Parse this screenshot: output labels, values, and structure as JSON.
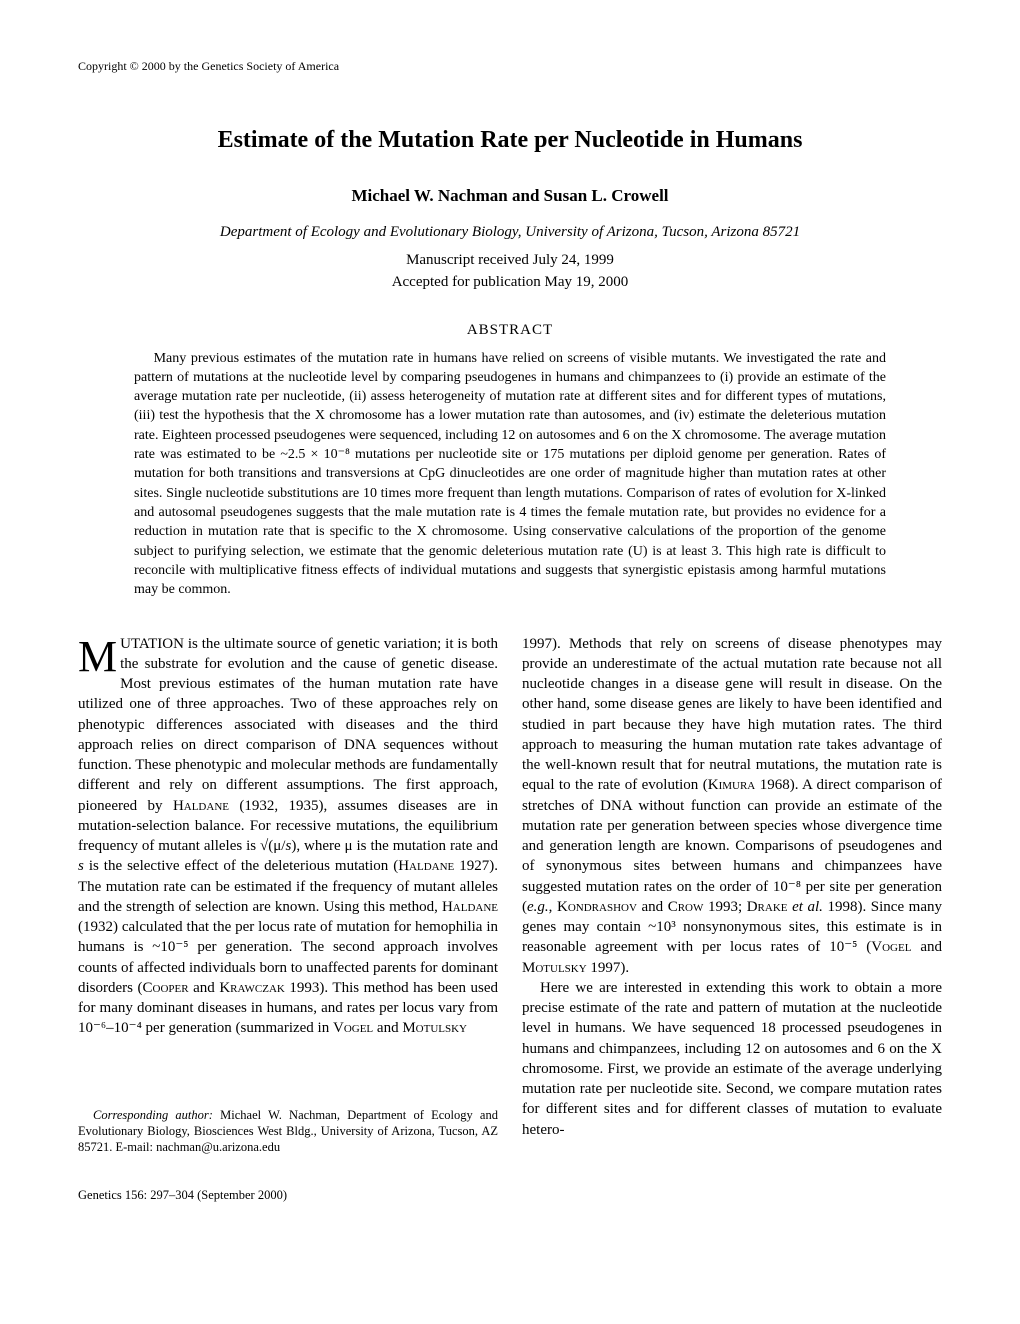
{
  "header": {
    "copyright": "Copyright © 2000 by the Genetics Society of America"
  },
  "title": "Estimate of the Mutation Rate per Nucleotide in Humans",
  "authors": "Michael W. Nachman and Susan L. Crowell",
  "affiliation": "Department of Ecology and Evolutionary Biology, University of Arizona, Tucson, Arizona 85721",
  "dates": {
    "received": "Manuscript received July 24, 1999",
    "accepted": "Accepted for publication May 19, 2000"
  },
  "abstract": {
    "heading": "ABSTRACT",
    "body": "Many previous estimates of the mutation rate in humans have relied on screens of visible mutants. We investigated the rate and pattern of mutations at the nucleotide level by comparing pseudogenes in humans and chimpanzees to (i) provide an estimate of the average mutation rate per nucleotide, (ii) assess heterogeneity of mutation rate at different sites and for different types of mutations, (iii) test the hypothesis that the X chromosome has a lower mutation rate than autosomes, and (iv) estimate the deleterious mutation rate. Eighteen processed pseudogenes were sequenced, including 12 on autosomes and 6 on the X chromosome. The average mutation rate was estimated to be ~2.5 × 10⁻⁸ mutations per nucleotide site or 175 mutations per diploid genome per generation. Rates of mutation for both transitions and transversions at CpG dinucleotides are one order of magnitude higher than mutation rates at other sites. Single nucleotide substitutions are 10 times more frequent than length mutations. Comparison of rates of evolution for X-linked and autosomal pseudogenes suggests that the male mutation rate is 4 times the female mutation rate, but provides no evidence for a reduction in mutation rate that is specific to the X chromosome. Using conservative calculations of the proportion of the genome subject to purifying selection, we estimate that the genomic deleterious mutation rate (U) is at least 3. This high rate is difficult to reconcile with multiplicative fitness effects of individual mutations and suggests that synergistic epistasis among harmful mutations may be common."
  },
  "body": {
    "col1": {
      "p1_html": "<span class=\"dropcap\">M</span>UTATION is the ultimate source of genetic variation; it is both the substrate for evolution and the cause of genetic disease. Most previous estimates of the human mutation rate have utilized one of three approaches. Two of these approaches rely on phenotypic differences associated with diseases and the third approach relies on direct comparison of DNA sequences without function. These phenotypic and molecular methods are fundamentally different and rely on different assumptions. The first approach, pioneered by <span class=\"sc\">Haldane</span> (1932, 1935), assumes diseases are in mutation-selection balance. For recessive mutations, the equilibrium frequency of mutant alleles is √(μ/<i>s</i>), where μ is the mutation rate and <i>s</i> is the selective effect of the deleterious mutation (<span class=\"sc\">Haldane</span> 1927). The mutation rate can be estimated if the frequency of mutant alleles and the strength of selection are known. Using this method, <span class=\"sc\">Haldane</span> (1932) calculated that the per locus rate of mutation for hemophilia in humans is ~10⁻⁵ per generation. The second approach involves counts of affected individuals born to unaffected parents for dominant disorders (<span class=\"sc\">Cooper</span> and <span class=\"sc\">Krawczak</span> 1993). This method has been used for many dominant diseases in humans, and rates per locus vary from 10⁻⁶–10⁻⁴ per generation (summarized in <span class=\"sc\">Vogel</span> and <span class=\"sc\">Motulsky</span>"
    },
    "col2": {
      "p1_html": "1997). Methods that rely on screens of disease phenotypes may provide an underestimate of the actual mutation rate because not all nucleotide changes in a disease gene will result in disease. On the other hand, some disease genes are likely to have been identified and studied in part because they have high mutation rates. The third approach to measuring the human mutation rate takes advantage of the well-known result that for neutral mutations, the mutation rate is equal to the rate of evolution (<span class=\"sc\">Kimura</span> 1968). A direct comparison of stretches of DNA without function can provide an estimate of the mutation rate per generation between species whose divergence time and generation length are known. Comparisons of pseudogenes and of synonymous sites between humans and chimpanzees have suggested mutation rates on the order of 10⁻⁸ per site per generation (<i>e.g.</i>, <span class=\"sc\">Kondrashov</span> and <span class=\"sc\">Crow</span> 1993; <span class=\"sc\">Drake</span> <i>et al.</i> 1998). Since many genes may contain ~10³ nonsynonymous sites, this estimate is in reasonable agreement with per locus rates of 10⁻⁵ (<span class=\"sc\">Vogel</span> and <span class=\"sc\">Motulsky</span> 1997).",
      "p2_html": "Here we are interested in extending this work to obtain a more precise estimate of the rate and pattern of mutation at the nucleotide level in humans. We have sequenced 18 processed pseudogenes in humans and chimpanzees, including 12 on autosomes and 6 on the X chromosome. First, we provide an estimate of the average underlying mutation rate per nucleotide site. Second, we compare mutation rates for different sites and for different classes of mutation to evaluate hetero-"
    }
  },
  "corresponding": {
    "label": "Corresponding author:",
    "text": " Michael W. Nachman, Department of Ecology and Evolutionary Biology, Biosciences West Bldg., University of Arizona, Tucson, AZ 85721. E-mail: nachman@u.arizona.edu"
  },
  "footer": "Genetics 156: 297–304 (September 2000)"
}
